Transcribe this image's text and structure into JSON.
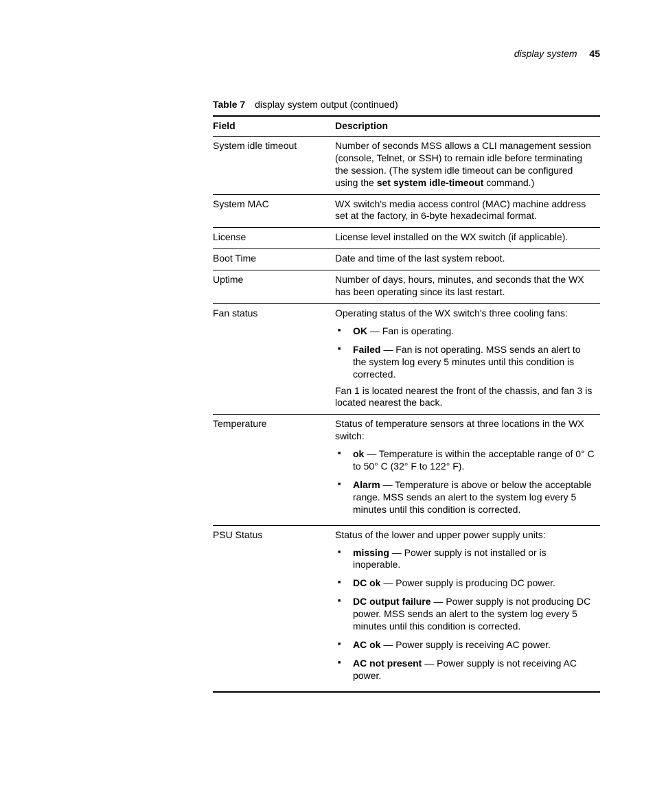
{
  "header": {
    "section": "display system",
    "page": "45"
  },
  "caption": {
    "label": "Table 7",
    "title": "display system output (continued)"
  },
  "columns": {
    "field": "Field",
    "description": "Description"
  },
  "rows": {
    "systemIdleTimeout": {
      "field": "System idle timeout",
      "p1a": "Number of seconds MSS allows a CLI management session (console, Telnet, or SSH) to remain idle before terminating the session. (The system idle timeout can be configured using the ",
      "p1bold": "set system idle-timeout",
      "p1b": " command.)"
    },
    "systemMac": {
      "field": "System MAC",
      "p1": "WX switch's media access control (MAC) machine address set at the factory, in 6-byte hexadecimal format."
    },
    "license": {
      "field": "License",
      "p1": "License level installed on the WX switch (if applicable)."
    },
    "bootTime": {
      "field": "Boot Time",
      "p1": "Date and time of the last system reboot."
    },
    "uptime": {
      "field": "Uptime",
      "p1": "Number of days, hours, minutes, and seconds that the WX has been operating since its last restart."
    },
    "fanStatus": {
      "field": "Fan status",
      "p1": "Operating status of the WX switch's three cooling fans:",
      "b1_bold": "OK",
      "b1_rest": " — Fan is operating.",
      "b2_bold": "Failed",
      "b2_rest": " — Fan is not operating. MSS sends an alert to the system log every 5 minutes until this condition is corrected.",
      "p2": "Fan 1 is located nearest the front of the chassis, and fan 3 is located nearest the back."
    },
    "temperature": {
      "field": "Temperature",
      "p1": "Status of temperature sensors at three locations in the WX switch:",
      "b1_bold": "ok",
      "b1_rest": " — Temperature is within the acceptable range of 0° C to 50° C (32° F to 122° F).",
      "b2_bold": "Alarm",
      "b2_rest": " — Temperature is above or below the acceptable range. MSS sends an alert to the system log every 5 minutes until this condition is corrected."
    },
    "psuStatus": {
      "field": "PSU Status",
      "p1": "Status of the lower and upper power supply units:",
      "b1_bold": "missing",
      "b1_rest": " — Power supply is not installed or is inoperable.",
      "b2_bold": "DC ok",
      "b2_rest": " — Power supply is producing DC power.",
      "b3_bold": "DC output failure",
      "b3_rest": " — Power supply is not producing DC power. MSS sends an alert to the system log every 5 minutes until this condition is corrected.",
      "b4_bold": "AC ok",
      "b4_rest": " — Power supply is receiving AC power.",
      "b5_bold": "AC not present",
      "b5_rest": " — Power supply is not receiving AC power."
    }
  }
}
